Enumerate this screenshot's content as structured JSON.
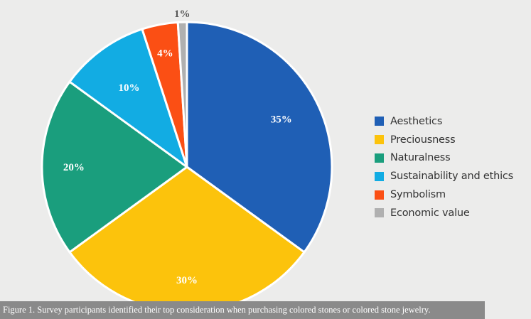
{
  "chart_data": {
    "type": "pie",
    "start": "top",
    "direction": "clockwise",
    "legend_position": "right",
    "slices": [
      {
        "name": "Aesthetics",
        "value": 35,
        "label": "35%",
        "color": "#1f5fb5"
      },
      {
        "name": "Preciousness",
        "value": 30,
        "label": "30%",
        "color": "#fcc30c"
      },
      {
        "name": "Naturalness",
        "value": 20,
        "label": "20%",
        "color": "#1a9e7d"
      },
      {
        "name": "Sustainability and ethics",
        "value": 10,
        "label": "10%",
        "color": "#12ace3"
      },
      {
        "name": "Symbolism",
        "value": 4,
        "label": "4%",
        "color": "#fb4f14"
      },
      {
        "name": "Economic value",
        "value": 1,
        "label": "1%",
        "color": "#b0b0b0"
      }
    ]
  },
  "caption": "Figure 1. Survey participants identified their top consideration when purchasing colored stones or colored stone jewelry."
}
